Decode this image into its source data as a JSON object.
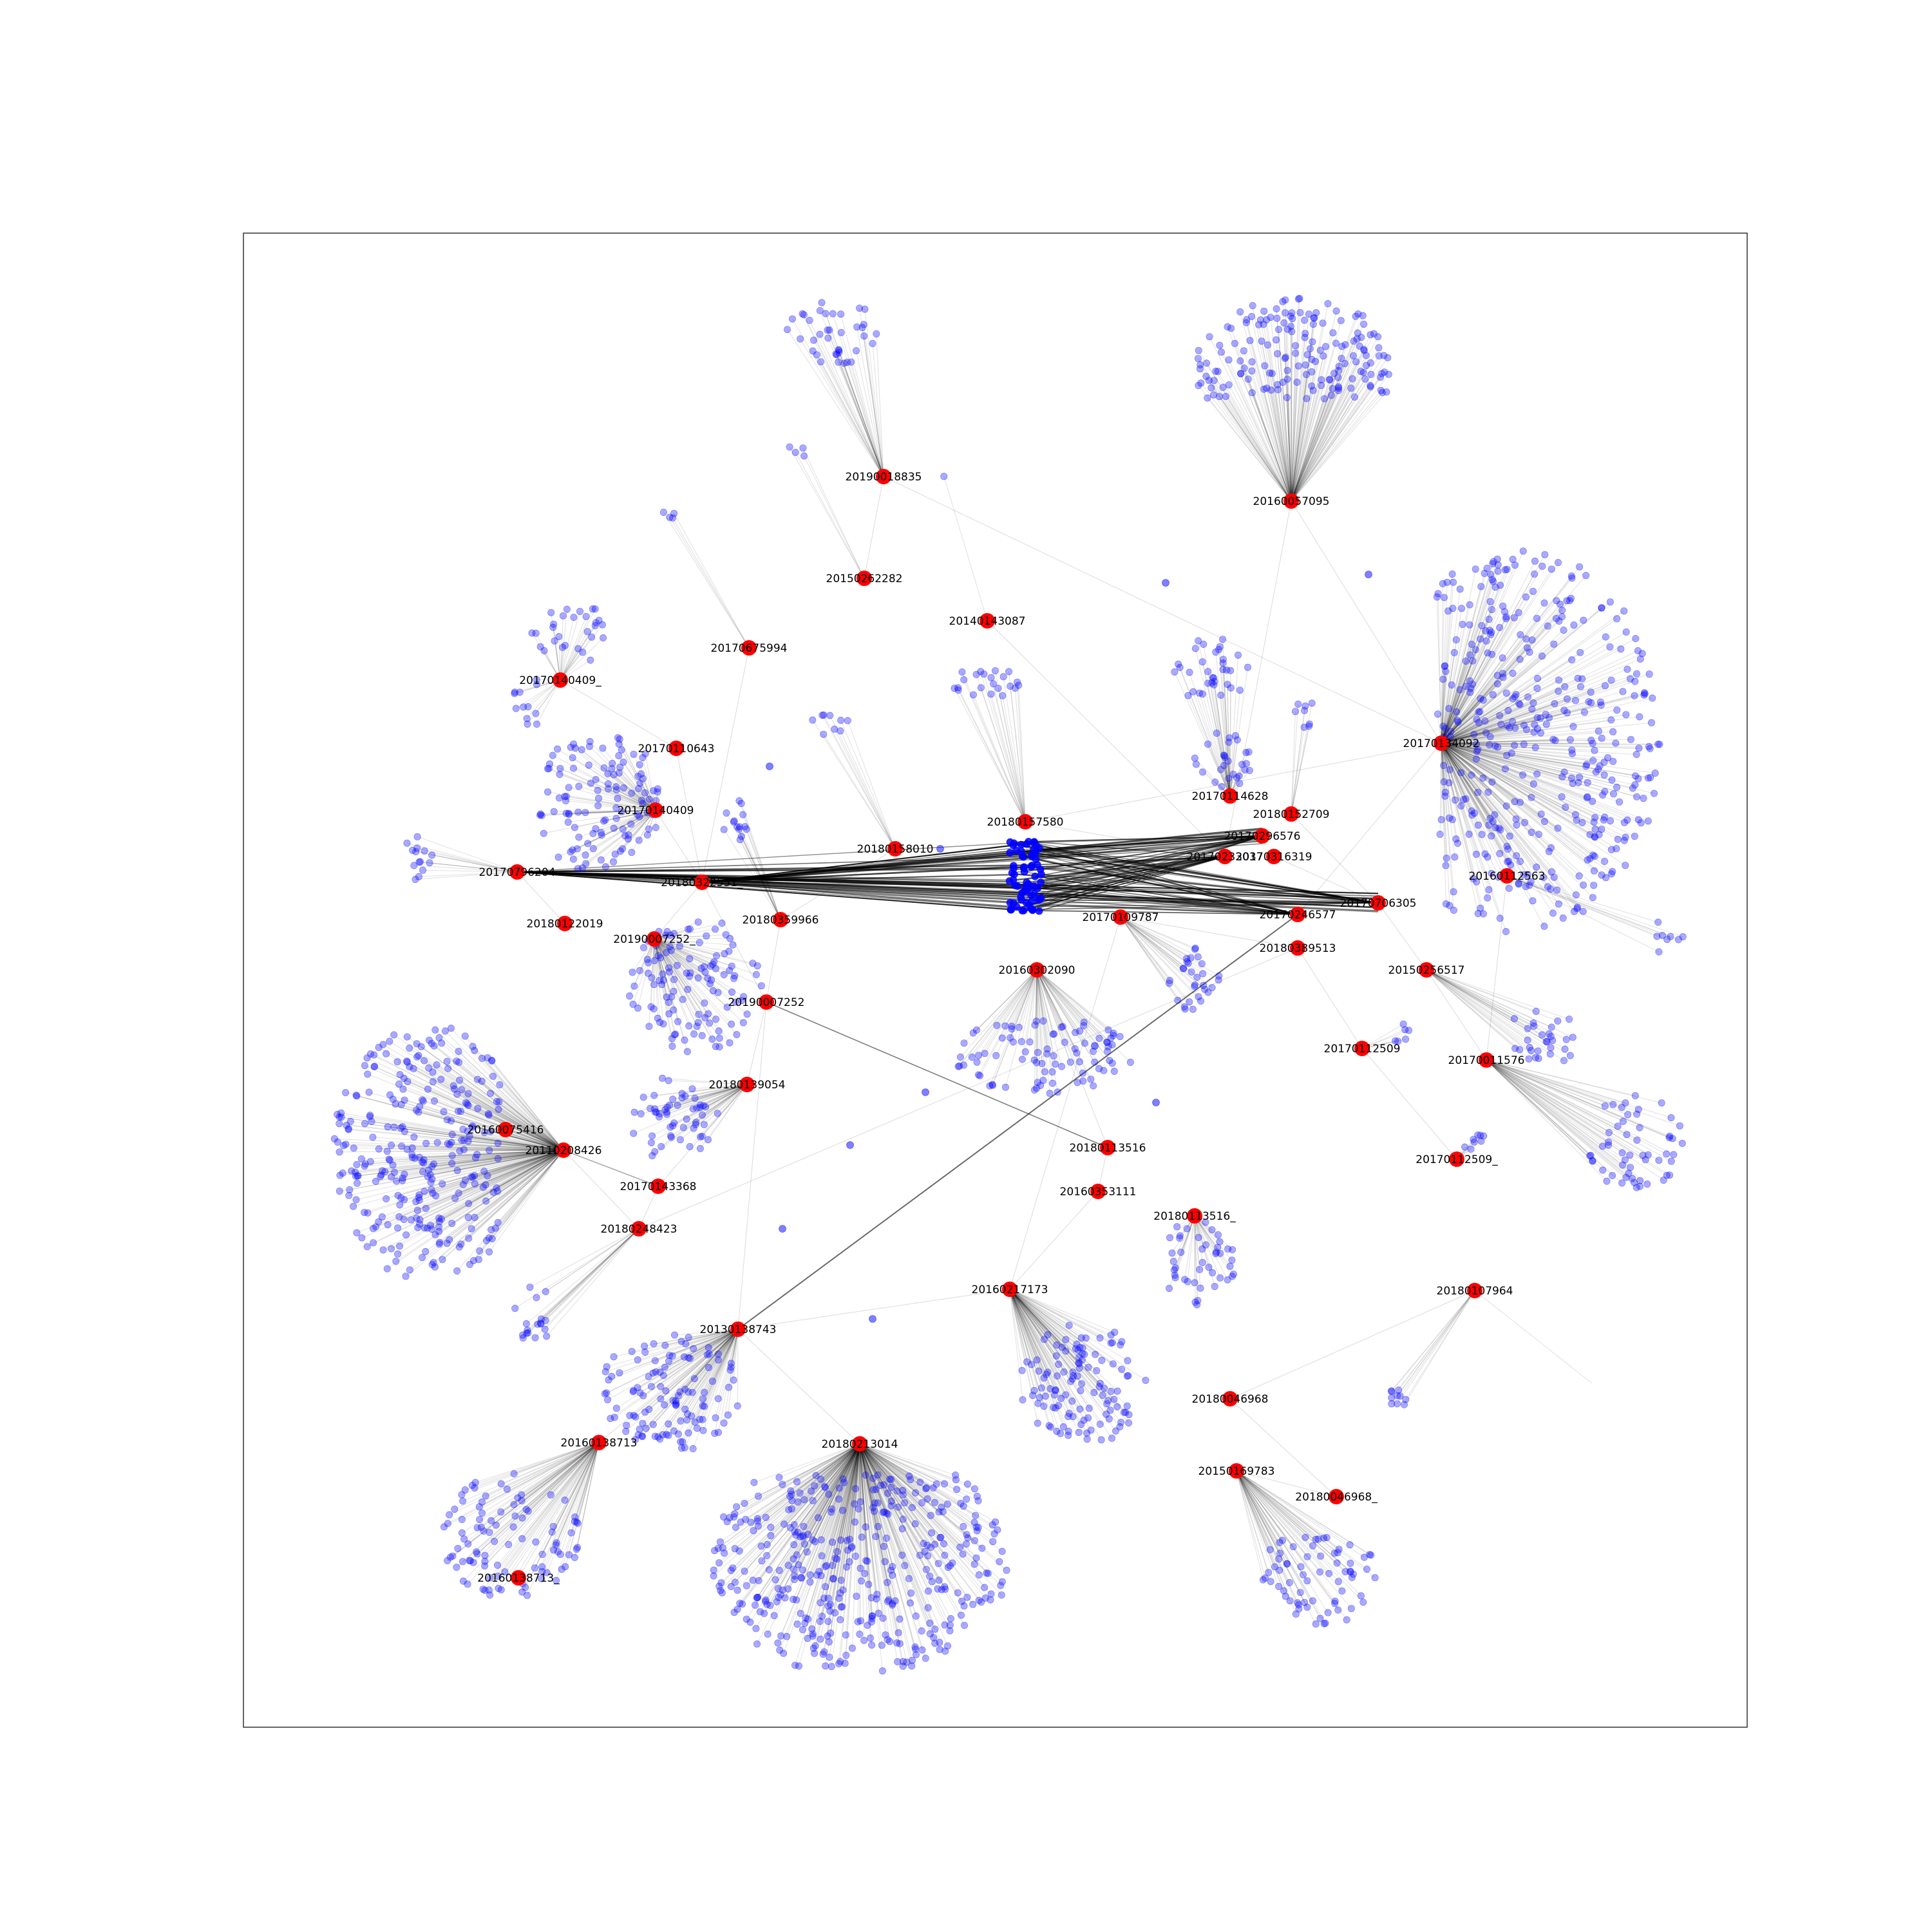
{
  "colors": {
    "hub": "#ff0000",
    "leaf": "#0000ff",
    "edge": "#000000",
    "frame": "#333333",
    "background": "#ffffff"
  },
  "hubs": [
    {
      "id": "h0",
      "label": "20190018835"
    },
    {
      "id": "h1",
      "label": "20160057095"
    },
    {
      "id": "h2",
      "label": "20150262282"
    },
    {
      "id": "h3",
      "label": "20140143087"
    },
    {
      "id": "h4",
      "label": "20170675994"
    },
    {
      "id": "h5",
      "label": "20170140409_"
    },
    {
      "id": "h6",
      "label": "20170110643"
    },
    {
      "id": "h7",
      "label": "20170140409"
    },
    {
      "id": "h8",
      "label": "20170796204"
    },
    {
      "id": "h9",
      "label": "20180322531_"
    },
    {
      "id": "h10",
      "label": "20180122019"
    },
    {
      "id": "h11",
      "label": "20180158010"
    },
    {
      "id": "h12",
      "label": "20180157580"
    },
    {
      "id": "h13",
      "label": "20190007252_"
    },
    {
      "id": "h14",
      "label": "20180359966"
    },
    {
      "id": "h15",
      "label": "20190007252"
    },
    {
      "id": "h16",
      "label": "20170114628"
    },
    {
      "id": "h17",
      "label": "20180152709"
    },
    {
      "id": "h18",
      "label": "20170296576"
    },
    {
      "id": "h19",
      "label": "20170233037"
    },
    {
      "id": "h20",
      "label": "20170316319"
    },
    {
      "id": "h21",
      "label": "20170134092"
    },
    {
      "id": "h22",
      "label": "20160112563"
    },
    {
      "id": "h23",
      "label": "20170706305"
    },
    {
      "id": "h24",
      "label": "20170246577"
    },
    {
      "id": "h25",
      "label": "20170109787"
    },
    {
      "id": "h26",
      "label": "20180389513"
    },
    {
      "id": "h27",
      "label": "20160302090"
    },
    {
      "id": "h28",
      "label": "20150256517"
    },
    {
      "id": "h29",
      "label": "20170112509"
    },
    {
      "id": "h30",
      "label": "20170011576"
    },
    {
      "id": "h31",
      "label": "20180139054"
    },
    {
      "id": "h32",
      "label": "20160075416"
    },
    {
      "id": "h33",
      "label": "20110208426"
    },
    {
      "id": "h34",
      "label": "20180113516"
    },
    {
      "id": "h35",
      "label": "20170112509_"
    },
    {
      "id": "h36",
      "label": "20170143368"
    },
    {
      "id": "h37",
      "label": "20160353111"
    },
    {
      "id": "h38",
      "label": "20180248423"
    },
    {
      "id": "h39",
      "label": "20180113516_"
    },
    {
      "id": "h40",
      "label": "20160217173"
    },
    {
      "id": "h41",
      "label": "20180107964"
    },
    {
      "id": "h42",
      "label": "20130138743"
    },
    {
      "id": "h43",
      "label": "20180046968"
    },
    {
      "id": "h44",
      "label": "20160138713"
    },
    {
      "id": "h45",
      "label": "20180213014"
    },
    {
      "id": "h46",
      "label": "20150169783"
    },
    {
      "id": "h47",
      "label": "20180046968_"
    },
    {
      "id": "h48",
      "label": "20160138713_"
    }
  ]
}
